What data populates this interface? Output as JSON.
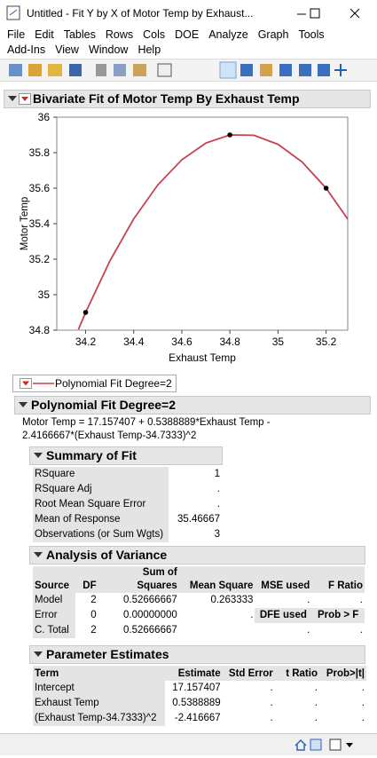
{
  "window": {
    "title": "Untitled - Fit Y by X of Motor Temp by Exhaust..."
  },
  "menu": [
    [
      "File",
      "Edit",
      "Tables",
      "Rows",
      "Cols",
      "DOE",
      "Analyze",
      "Graph",
      "Tools"
    ],
    [
      "Add-Ins",
      "View",
      "Window",
      "Help"
    ]
  ],
  "report": {
    "title": "Bivariate Fit of Motor Temp By Exhaust Temp"
  },
  "chart_data": {
    "type": "scatter",
    "xlabel": "Exhaust Temp",
    "ylabel": "Motor Temp",
    "xlim": [
      34.08,
      35.29
    ],
    "ylim": [
      34.8,
      36.0
    ],
    "xticks": [
      34.2,
      34.4,
      34.6,
      34.8,
      35,
      35.2
    ],
    "yticks": [
      34.8,
      35,
      35.2,
      35.4,
      35.6,
      35.8,
      36
    ],
    "grid": false,
    "series": [
      {
        "color": "#000000",
        "x": [
          34.2,
          34.8,
          35.2
        ],
        "values": [
          34.9,
          35.9,
          35.6
        ]
      },
      {
        "name": "Polynomial Fit Degree=2",
        "type": "line",
        "color": "#c8414f",
        "x": [
          34.17,
          34.2,
          34.3,
          34.4,
          34.5,
          34.6,
          34.7,
          34.8,
          34.9,
          35.0,
          35.1,
          35.2,
          35.29
        ],
        "values": [
          34.804,
          34.9,
          35.188,
          35.427,
          35.618,
          35.76,
          35.854,
          35.9,
          35.898,
          35.847,
          35.748,
          35.6,
          35.426
        ]
      }
    ]
  },
  "fit": {
    "title": "Polynomial Fit Degree=2",
    "equation": [
      "Motor Temp = 17.157407 + 0.5388889*Exhaust Temp -",
      "2.4166667*(Exhaust Temp-34.7333)^2"
    ]
  },
  "summary": {
    "title": "Summary of Fit",
    "rows": [
      [
        "RSquare",
        "1"
      ],
      [
        "RSquare Adj",
        "."
      ],
      [
        "Root Mean Square Error",
        "."
      ],
      [
        "Mean of Response",
        "35.46667"
      ],
      [
        "Observations (or Sum Wgts)",
        "3"
      ]
    ]
  },
  "anova": {
    "title": "Analysis of Variance",
    "header": [
      "Source",
      "DF",
      [
        "Sum of",
        "Squares"
      ],
      "Mean Square",
      "MSE used",
      "F Ratio"
    ],
    "rows": [
      [
        "Model",
        "2",
        "0.52666667",
        "0.263333",
        ".",
        "."
      ],
      [
        "Error",
        "0",
        "0.00000000",
        ".",
        "DFE used",
        "Prob > F"
      ],
      [
        "C. Total",
        "2",
        "0.52666667",
        null,
        ".",
        "."
      ]
    ]
  },
  "estimates": {
    "title": "Parameter Estimates",
    "header": [
      "Term",
      "Estimate",
      "Std Error",
      "t Ratio",
      "Prob>|t|"
    ],
    "rows": [
      [
        "Intercept",
        "17.157407",
        ".",
        ".",
        "."
      ],
      [
        "Exhaust Temp",
        "0.5388889",
        ".",
        ".",
        "."
      ],
      [
        "(Exhaust Temp-34.7333)^2",
        "-2.416667",
        ".",
        ".",
        "."
      ]
    ]
  }
}
